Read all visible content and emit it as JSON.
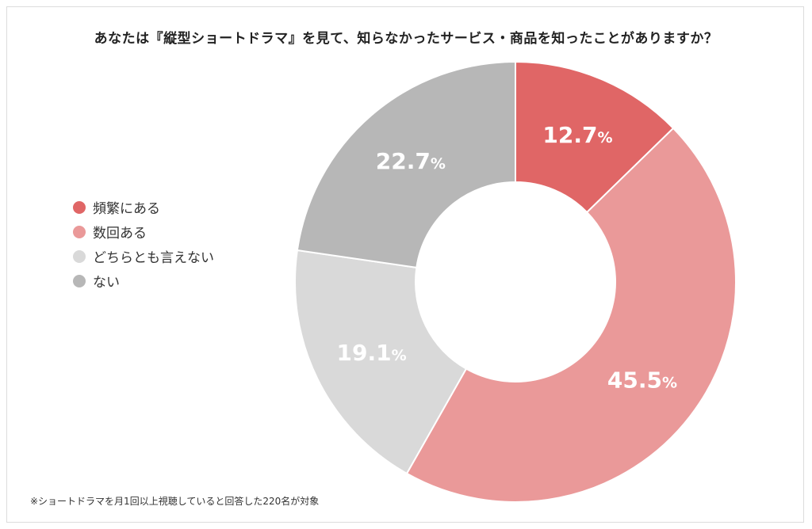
{
  "title": "あなたは『縦型ショートドラマ』を見て、知らなかったサービス・商品を知ったことがありますか？",
  "footnote": "※ショートドラマを月1回以上視聴していると回答した220名が対象",
  "chart_data": {
    "type": "pie",
    "donut": true,
    "title": "あなたは『縦型ショートドラマ』を見て、知らなかったサービス・商品を知ったことがありますか？",
    "legend_position": "left",
    "unit": "%",
    "slices": [
      {
        "label": "頻繁にある",
        "value": 12.7,
        "display": "12.7",
        "color": "#e06666"
      },
      {
        "label": "数回ある",
        "value": 45.5,
        "display": "45.5",
        "color": "#ea9999"
      },
      {
        "label": "どちらとも言えない",
        "value": 19.1,
        "display": "19.1",
        "color": "#d9d9d9"
      },
      {
        "label": "ない",
        "value": 22.7,
        "display": "22.7",
        "color": "#b7b7b7"
      }
    ]
  }
}
